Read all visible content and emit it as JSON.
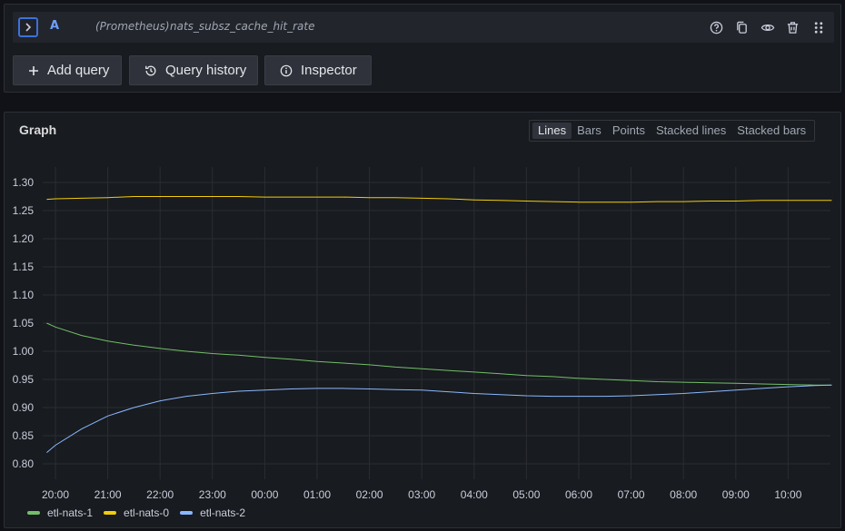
{
  "query": {
    "ref": "A",
    "datasource": "(Prometheus)",
    "metric": "nats_subsz_cache_hit_rate",
    "icons": [
      "help-icon",
      "duplicate-icon",
      "eye-icon",
      "trash-icon",
      "drag-handle-icon"
    ]
  },
  "buttons": {
    "add_query": "Add query",
    "query_history": "Query history",
    "inspector": "Inspector"
  },
  "graph": {
    "title": "Graph",
    "viz_options": [
      "Lines",
      "Bars",
      "Points",
      "Stacked lines",
      "Stacked bars"
    ],
    "selected_viz": "Lines"
  },
  "chart_data": {
    "type": "line",
    "x_ticks": [
      "20:00",
      "21:00",
      "22:00",
      "23:00",
      "00:00",
      "01:00",
      "02:00",
      "03:00",
      "04:00",
      "05:00",
      "06:00",
      "07:00",
      "08:00",
      "09:00",
      "10:00"
    ],
    "x": [
      "19:50",
      "20:00",
      "20:30",
      "21:00",
      "21:30",
      "22:00",
      "22:30",
      "23:00",
      "23:30",
      "00:00",
      "00:30",
      "01:00",
      "01:30",
      "02:00",
      "02:30",
      "03:00",
      "03:30",
      "04:00",
      "04:30",
      "05:00",
      "05:30",
      "06:00",
      "06:30",
      "07:00",
      "07:30",
      "08:00",
      "08:30",
      "09:00",
      "09:30",
      "10:00",
      "10:30",
      "10:50"
    ],
    "ylim": [
      0.78,
      1.32
    ],
    "y_ticks": [
      0.8,
      0.85,
      0.9,
      0.95,
      1.0,
      1.05,
      1.1,
      1.15,
      1.2,
      1.25,
      1.3
    ],
    "grid": true,
    "legend_position": "bottom-left",
    "series": [
      {
        "name": "etl-nats-1",
        "color": "#73bf69",
        "values": [
          1.05,
          1.043,
          1.028,
          1.018,
          1.011,
          1.005,
          1.0,
          0.996,
          0.993,
          0.989,
          0.986,
          0.982,
          0.979,
          0.976,
          0.972,
          0.969,
          0.966,
          0.963,
          0.96,
          0.957,
          0.955,
          0.952,
          0.95,
          0.948,
          0.946,
          0.945,
          0.944,
          0.943,
          0.942,
          0.941,
          0.94,
          0.94
        ]
      },
      {
        "name": "etl-nats-0",
        "color": "#f2cc0c",
        "values": [
          1.27,
          1.271,
          1.272,
          1.273,
          1.275,
          1.275,
          1.275,
          1.275,
          1.275,
          1.274,
          1.274,
          1.274,
          1.274,
          1.273,
          1.273,
          1.272,
          1.271,
          1.269,
          1.268,
          1.267,
          1.266,
          1.265,
          1.265,
          1.265,
          1.266,
          1.266,
          1.267,
          1.267,
          1.268,
          1.268,
          1.268,
          1.268
        ]
      },
      {
        "name": "etl-nats-2",
        "color": "#8ab8ff",
        "values": [
          0.82,
          0.833,
          0.862,
          0.885,
          0.9,
          0.912,
          0.92,
          0.925,
          0.929,
          0.931,
          0.933,
          0.934,
          0.934,
          0.933,
          0.932,
          0.931,
          0.928,
          0.925,
          0.923,
          0.921,
          0.92,
          0.92,
          0.92,
          0.921,
          0.923,
          0.925,
          0.928,
          0.931,
          0.934,
          0.937,
          0.939,
          0.94
        ]
      }
    ]
  }
}
